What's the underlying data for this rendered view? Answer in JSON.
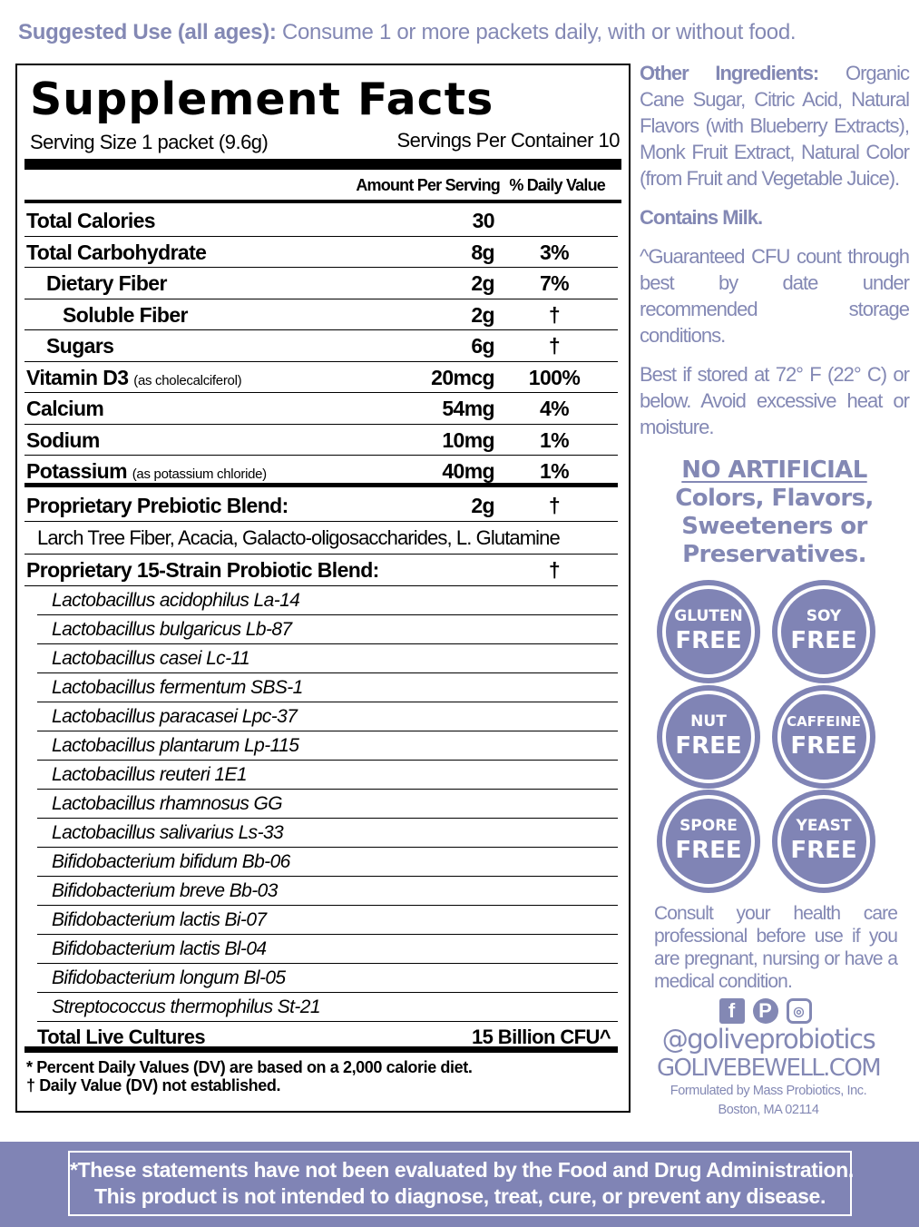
{
  "suggested_use": {
    "label": "Suggested Use (all ages):",
    "text": " Consume 1 or more packets daily, with or without food."
  },
  "facts": {
    "title": "Supplement Facts",
    "serving_size": "Serving Size 1 packet (9.6g)",
    "servings_per_container": "Servings Per Container 10",
    "col_amount": "Amount Per Serving",
    "col_dv": "% Daily Value",
    "nutrients": [
      {
        "label": "Total Calories",
        "amount": "30",
        "dv": "",
        "indent": 0
      },
      {
        "label": "Total Carbohydrate",
        "amount": "8g",
        "dv": "3%",
        "indent": 0
      },
      {
        "label": "Dietary Fiber",
        "amount": "2g",
        "dv": "7%",
        "indent": 1
      },
      {
        "label": "Soluble Fiber",
        "amount": "2g",
        "dv": "†",
        "indent": 2
      },
      {
        "label": "Sugars",
        "amount": "6g",
        "dv": "†",
        "indent": 1
      },
      {
        "label": "Vitamin D3",
        "note": "(as cholecalciferol)",
        "amount": "20mcg",
        "dv": "100%",
        "indent": 0
      },
      {
        "label": "Calcium",
        "amount": "54mg",
        "dv": "4%",
        "indent": 0
      },
      {
        "label": "Sodium",
        "amount": "10mg",
        "dv": "1%",
        "indent": 0
      },
      {
        "label": "Potassium",
        "note": "(as potassium chloride)",
        "amount": "40mg",
        "dv": "1%",
        "indent": 0,
        "thick": true
      }
    ],
    "prebiotic": {
      "label": "Proprietary Prebiotic Blend:",
      "amount": "2g",
      "dv": "†",
      "ingredients": "Larch Tree Fiber, Acacia, Galacto-oligosaccharides, L. Glutamine"
    },
    "probiotic": {
      "label": "Proprietary 15-Strain Probiotic Blend:",
      "dv": "†",
      "strains": [
        "Lactobacillus acidophilus La-14",
        "Lactobacillus bulgaricus Lb-87",
        "Lactobacillus casei Lc-11",
        "Lactobacillus fermentum SBS-1",
        "Lactobacillus paracasei Lpc-37",
        "Lactobacillus plantarum Lp-115",
        "Lactobacillus reuteri 1E1",
        "Lactobacillus rhamnosus GG",
        "Lactobacillus salivarius Ls-33",
        "Bifidobacterium bifidum Bb-06",
        "Bifidobacterium breve Bb-03",
        "Bifidobacterium lactis Bi-07",
        "Bifidobacterium lactis Bl-04",
        "Bifidobacterium longum Bl-05",
        "Streptococcus thermophilus St-21"
      ]
    },
    "total_cultures": {
      "label": "Total Live Cultures",
      "amount": "15 Billion CFU^"
    },
    "footnote1": "* Percent Daily Values (DV) are based on a 2,000 calorie diet.",
    "footnote2": "† Daily Value (DV) not established."
  },
  "side": {
    "other_label": "Other Ingredients:",
    "other_text": " Organic Cane Sugar, Citric Acid, Natural Flavors (with Blueberry Extracts), Monk Fruit Extract, Natural Color (from Fruit and Vegetable Juice).",
    "contains": "Contains Milk.",
    "cfu_note": "^Guaranteed CFU count through best by date under recommended storage conditions.",
    "storage": "Best if stored at 72° F (22° C) or below. Avoid excessive heat or moisture.",
    "no_artificial_1": "NO ARTIFICIAL",
    "no_artificial_2": "Colors, Flavors, Sweeteners or Preservatives.",
    "badges": [
      {
        "top": "GLUTEN",
        "bottom": "FREE"
      },
      {
        "top": "SOY",
        "bottom": "FREE"
      },
      {
        "top": "NUT",
        "bottom": "FREE"
      },
      {
        "top": "CAFFEINE",
        "bottom": "FREE"
      },
      {
        "top": "SPORE",
        "bottom": "FREE"
      },
      {
        "top": "YEAST",
        "bottom": "FREE"
      }
    ],
    "consult": "Consult your health care professional before use if you are pregnant, nursing or have a medical condition.",
    "social_icons": [
      "facebook-icon",
      "pinterest-icon",
      "instagram-icon"
    ],
    "handle": "@goliveprobiotics",
    "website": "GOLIVEBEWELL.COM",
    "formulated": "Formulated by Mass Probiotics, Inc.",
    "address": "Boston, MA 02114"
  },
  "disclaimer": {
    "line1": "*These statements have not been evaluated by the Food and Drug Administration.",
    "line2": "This product is not intended to diagnose, treat, cure, or prevent any disease."
  },
  "colors": {
    "accent": "#8388b4",
    "banner": "#8084b5",
    "text": "#000000"
  }
}
